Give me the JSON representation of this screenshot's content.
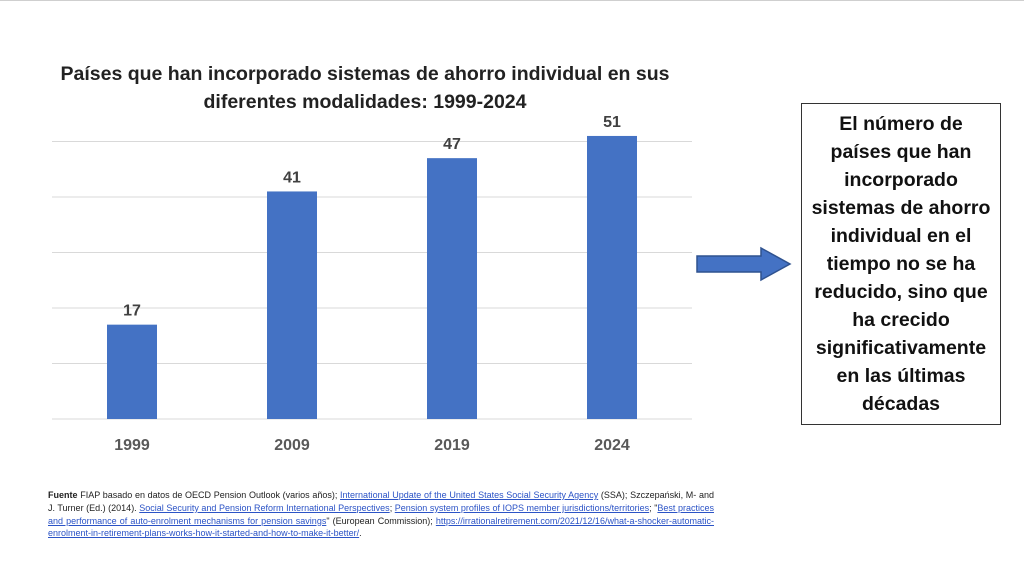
{
  "chart_data": {
    "type": "bar",
    "title": "Países que han incorporado sistemas de ahorro individual en sus diferentes modalidades: 1999-2024",
    "categories": [
      "1999",
      "2009",
      "2019",
      "2024"
    ],
    "values": [
      17,
      41,
      47,
      51
    ],
    "xlabel": "",
    "ylabel": "",
    "ylim": [
      0,
      60
    ],
    "grid": true,
    "bar_color": "#4472C4",
    "data_labels": true
  },
  "callout": {
    "text": "El número de países que han incorporado sistemas de ahorro individual en el tiempo no se ha reducido, sino que ha crecido significativamente en las últimas décadas"
  },
  "arrow_color": "#4472C4",
  "footnote": {
    "lead": "Fuente",
    "part1": " FIAP basado en datos de OECD Pension Outlook (varios años); ",
    "link1": "International Update of the United States Social Security Agency",
    "part2": " (SSA); Szczepański, M- and J. Turner (Ed.) (2014). ",
    "link2": "Social Security and Pension Reform International Perspectives",
    "part3": "; ",
    "link3": "Pension system profiles of IOPS member jurisdictions/territories",
    "part4": "; \"",
    "link4": "Best practices and performance of auto-enrolment mechanisms for pension savings",
    "part5": "\" (European Commission); ",
    "link5": "https://irrationalretirement.com/2021/12/16/what-a-shocker-automatic-enrolment-in-retirement-plans-works-how-it-started-and-how-to-make-it-better/",
    "part6": "."
  }
}
